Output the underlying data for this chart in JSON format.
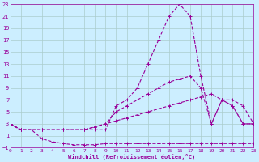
{
  "xlabel": "Windchill (Refroidissement éolien,°C)",
  "xlim": [
    0,
    23
  ],
  "ylim": [
    -1,
    23
  ],
  "yticks": [
    -1,
    1,
    3,
    5,
    7,
    9,
    11,
    13,
    15,
    17,
    19,
    21,
    23
  ],
  "xticks": [
    0,
    1,
    2,
    3,
    4,
    5,
    6,
    7,
    8,
    9,
    10,
    11,
    12,
    13,
    14,
    15,
    16,
    17,
    18,
    19,
    20,
    21,
    22,
    23
  ],
  "bg_color": "#cceeff",
  "grid_color": "#aacccc",
  "line_color": "#990099",
  "curves": [
    {
      "x": [
        0,
        1,
        2,
        3,
        4,
        5,
        6,
        7,
        8,
        9,
        10,
        11,
        12,
        13,
        14,
        15,
        16,
        17,
        18,
        19,
        20,
        21,
        22,
        23
      ],
      "y": [
        3,
        2,
        2,
        0.5,
        0,
        -0.3,
        -0.5,
        -0.5,
        -0.5,
        -0.3,
        -0.3,
        -0.3,
        -0.3,
        -0.3,
        -0.3,
        -0.3,
        -0.3,
        -0.3,
        -0.3,
        -0.3,
        -0.3,
        -0.3,
        -0.3,
        -0.3
      ]
    },
    {
      "x": [
        0,
        1,
        2,
        3,
        4,
        5,
        6,
        7,
        8,
        9,
        10,
        11,
        12,
        13,
        14,
        15,
        16,
        17,
        18,
        19,
        20,
        21,
        22,
        23
      ],
      "y": [
        3,
        2,
        2,
        2,
        2,
        2,
        2,
        2,
        2,
        2,
        6,
        7,
        9,
        13,
        17,
        21,
        23,
        21,
        11,
        3,
        7,
        6,
        3,
        3
      ]
    },
    {
      "x": [
        0,
        1,
        2,
        3,
        4,
        5,
        6,
        7,
        8,
        9,
        10,
        11,
        12,
        13,
        14,
        15,
        16,
        17,
        18,
        19,
        20,
        21,
        22,
        23
      ],
      "y": [
        3,
        2,
        2,
        2,
        2,
        2,
        2,
        2,
        2.5,
        3,
        3.5,
        4,
        4.5,
        5,
        5.5,
        6,
        6.5,
        7,
        7.5,
        8,
        7,
        7,
        6,
        3
      ]
    },
    {
      "x": [
        0,
        1,
        2,
        3,
        4,
        5,
        6,
        7,
        8,
        9,
        10,
        11,
        12,
        13,
        14,
        15,
        16,
        17,
        18,
        19,
        20,
        21,
        22,
        23
      ],
      "y": [
        3,
        2,
        2,
        2,
        2,
        2,
        2,
        2,
        2.5,
        3,
        5,
        6,
        7,
        8,
        9,
        10,
        10.5,
        11,
        9,
        3,
        7,
        6,
        3,
        3
      ]
    }
  ]
}
